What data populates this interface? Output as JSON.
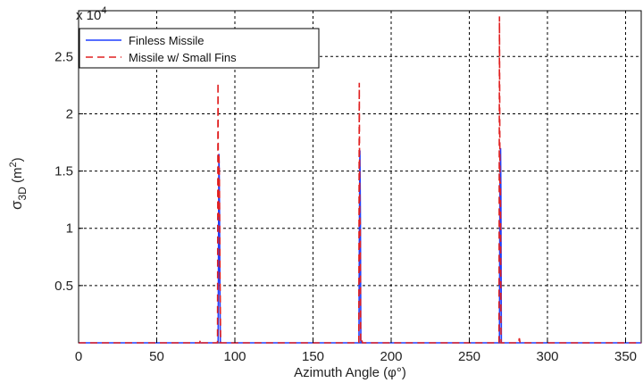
{
  "chart_data": {
    "type": "line",
    "title": "",
    "xlabel": "Azimuth Angle (φ°)",
    "ylabel_main": "σ",
    "ylabel_sub": "3D",
    "ylabel_unit_pre": " (m",
    "ylabel_unit_sup": "2",
    "ylabel_unit_post": ")",
    "multiplier_text": "x 10",
    "multiplier_exp": "4",
    "xlim": [
      0,
      360
    ],
    "ylim": [
      0,
      2.9
    ],
    "scale_factor": 10000,
    "x_ticks": [
      0,
      50,
      100,
      150,
      200,
      250,
      300,
      350
    ],
    "y_ticks": [
      0.5,
      1,
      1.5,
      2,
      2.5
    ],
    "grid": true,
    "legend_position": "top-left",
    "series": [
      {
        "name": "Finless Missile",
        "color": "#1f3fff",
        "dash": "solid",
        "points": [
          [
            0,
            0
          ],
          [
            89.3,
            0
          ],
          [
            89.6,
            1.1
          ],
          [
            89.8,
            1.65
          ],
          [
            90,
            1.45
          ],
          [
            90.2,
            1.1
          ],
          [
            90.4,
            0.55
          ],
          [
            90.7,
            0
          ],
          [
            179.4,
            0
          ],
          [
            179.7,
            1.1
          ],
          [
            180,
            1.68
          ],
          [
            180.3,
            1.1
          ],
          [
            180.6,
            0
          ],
          [
            269.3,
            0
          ],
          [
            269.6,
            1.45
          ],
          [
            269.8,
            1.4
          ],
          [
            270,
            1.7
          ],
          [
            270.2,
            1.35
          ],
          [
            270.5,
            0
          ],
          [
            360,
            0
          ]
        ]
      },
      {
        "name": "Missile w/ Small Fins",
        "color": "#e02020",
        "dash": "8,5",
        "points": [
          [
            0,
            0
          ],
          [
            77.5,
            0
          ],
          [
            78,
            0.03
          ],
          [
            78.5,
            0
          ],
          [
            88.9,
            0
          ],
          [
            89.2,
            2.27
          ],
          [
            89.5,
            1.1
          ],
          [
            89.8,
            1.65
          ],
          [
            90.1,
            1.45
          ],
          [
            90.5,
            0.55
          ],
          [
            90.9,
            0
          ],
          [
            179.3,
            0
          ],
          [
            179.6,
            2.27
          ],
          [
            179.9,
            1.1
          ],
          [
            180.2,
            1.05
          ],
          [
            180.5,
            0
          ],
          [
            181,
            0
          ],
          [
            181.3,
            0.02
          ],
          [
            181.6,
            0
          ],
          [
            269.0,
            0
          ],
          [
            269.3,
            2.85
          ],
          [
            269.6,
            1.4
          ],
          [
            269.9,
            1.4
          ],
          [
            270.3,
            0
          ],
          [
            281.5,
            0
          ],
          [
            282,
            0.04
          ],
          [
            282.5,
            0
          ],
          [
            360,
            0
          ]
        ]
      }
    ]
  }
}
